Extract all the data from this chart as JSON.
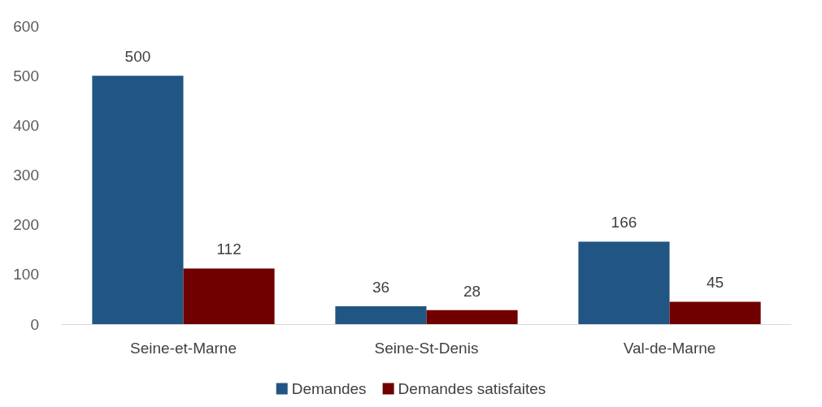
{
  "chart_data": {
    "type": "bar",
    "categories": [
      "Seine-et-Marne",
      "Seine-St-Denis",
      "Val-de-Marne"
    ],
    "series": [
      {
        "name": "Demandes",
        "color": "#215584",
        "values": [
          500,
          36,
          166
        ]
      },
      {
        "name": "Demandes satisfaites",
        "color": "#700000",
        "values": [
          112,
          28,
          45
        ]
      }
    ],
    "ylim": [
      0,
      600
    ],
    "yticks": [
      0,
      100,
      200,
      300,
      400,
      500,
      600
    ],
    "grid": false,
    "legend": "bottom",
    "data_labels": true
  }
}
